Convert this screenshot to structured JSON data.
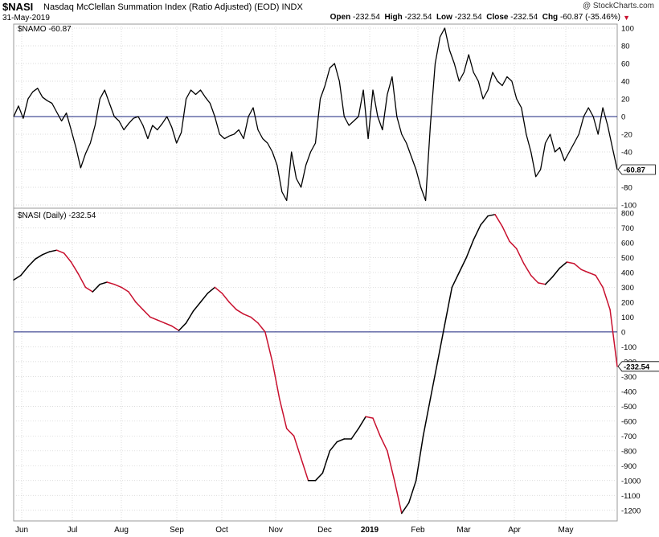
{
  "header": {
    "symbol": "$NASI",
    "name": "Nasdaq McClellan Summation Index (Ratio Adjusted) (EOD)",
    "exchange": "INDX",
    "date": "31-May-2019",
    "credit": "@ StockCharts.com",
    "ohlc": {
      "open_label": "Open",
      "open": "-232.54",
      "high_label": "High",
      "high": "-232.54",
      "low_label": "Low",
      "low": "-232.54",
      "close_label": "Close",
      "close": "-232.54",
      "chg_label": "Chg",
      "chg": "-60.87 (-35.46%)"
    }
  },
  "colors": {
    "line": "#000000",
    "decline": "#c8102e",
    "zero_line": "#1a237e",
    "grid": "#d0d0d0"
  },
  "chart_data": [
    {
      "type": "line",
      "panel_label": "$NAMO -60.87",
      "last_value_label": "-60.87",
      "ylim": [
        -100,
        100
      ],
      "yticks": [
        100,
        80,
        60,
        40,
        20,
        0,
        -20,
        -40,
        -60,
        -80,
        -100
      ],
      "zero_line": 0,
      "x": [
        0,
        2,
        4,
        6,
        8,
        10,
        12,
        14,
        16,
        18,
        20,
        22,
        24,
        26,
        28,
        30,
        32,
        34,
        36,
        38,
        40,
        42,
        44,
        46,
        48,
        50,
        52,
        54,
        56,
        58,
        60,
        62,
        64,
        66,
        68,
        70,
        72,
        74,
        76,
        78,
        80,
        82,
        84,
        86,
        88,
        90,
        92,
        94,
        96,
        98,
        100,
        102,
        104,
        106,
        108,
        110,
        112,
        114,
        116,
        118,
        120,
        122,
        124,
        126,
        128,
        130,
        132,
        134,
        136,
        138,
        140,
        142,
        144,
        146,
        148,
        150,
        152,
        154,
        156,
        158,
        160,
        162,
        164,
        166,
        168,
        170,
        172,
        174,
        176,
        178,
        180,
        182,
        184,
        186,
        188,
        190,
        192,
        194,
        196,
        198,
        200,
        202,
        204,
        206,
        208,
        210,
        212,
        214,
        216,
        218,
        220,
        222,
        224,
        226,
        228,
        230,
        232,
        234,
        236,
        238,
        240,
        242,
        244,
        246,
        248,
        250,
        252
      ],
      "values": [
        0,
        12,
        -2,
        20,
        28,
        32,
        22,
        18,
        15,
        5,
        -5,
        4,
        -15,
        -35,
        -58,
        -42,
        -30,
        -10,
        20,
        30,
        15,
        0,
        -5,
        -15,
        -8,
        -2,
        0,
        -10,
        -25,
        -10,
        -15,
        -8,
        0,
        -12,
        -30,
        -18,
        20,
        30,
        25,
        30,
        22,
        15,
        0,
        -20,
        -25,
        -22,
        -20,
        -15,
        -25,
        0,
        10,
        -15,
        -25,
        -30,
        -40,
        -55,
        -85,
        -95,
        -40,
        -70,
        -80,
        -55,
        -40,
        -30,
        20,
        35,
        55,
        60,
        40,
        0,
        -10,
        -5,
        0,
        30,
        -25,
        30,
        0,
        -15,
        25,
        45,
        0,
        -20,
        -30,
        -45,
        -60,
        -80,
        -95,
        -10,
        60,
        90,
        100,
        75,
        60,
        40,
        50,
        70,
        50,
        40,
        20,
        30,
        50,
        40,
        35,
        45,
        40,
        20,
        10,
        -20,
        -40,
        -68,
        -60,
        -30,
        -20,
        -40,
        -35,
        -50,
        -40,
        -30,
        -20,
        0,
        10,
        0,
        -20,
        10,
        -10,
        -35,
        -60
      ],
      "xlim": [
        0,
        252
      ]
    },
    {
      "type": "line",
      "panel_label": "$NASI (Daily) -232.54",
      "last_value_label": "-232.54",
      "ylim": [
        -1250,
        800
      ],
      "yticks": [
        800,
        700,
        600,
        500,
        400,
        300,
        200,
        100,
        0,
        -100,
        -200,
        -300,
        -400,
        -500,
        -600,
        -700,
        -800,
        -900,
        -1000,
        -1100,
        -1200
      ],
      "zero_line": 0,
      "x": [
        0,
        3,
        6,
        9,
        12,
        15,
        18,
        21,
        24,
        27,
        30,
        33,
        36,
        39,
        42,
        45,
        48,
        51,
        54,
        57,
        60,
        63,
        66,
        69,
        72,
        75,
        78,
        81,
        84,
        87,
        90,
        93,
        96,
        99,
        102,
        105,
        108,
        111,
        114,
        117,
        120,
        123,
        126,
        129,
        132,
        135,
        138,
        141,
        144,
        147,
        150,
        153,
        156,
        159,
        162,
        165,
        168,
        171,
        174,
        177,
        180,
        183,
        186,
        189,
        192,
        195,
        198,
        201,
        204,
        207,
        210,
        213,
        216,
        219,
        222,
        225,
        228,
        231,
        234,
        237,
        240,
        243,
        246,
        249,
        252
      ],
      "values": [
        350,
        380,
        440,
        490,
        520,
        540,
        550,
        530,
        470,
        390,
        300,
        270,
        320,
        335,
        320,
        300,
        270,
        200,
        150,
        100,
        80,
        60,
        40,
        10,
        60,
        140,
        200,
        260,
        300,
        260,
        200,
        150,
        120,
        100,
        60,
        0,
        -200,
        -450,
        -650,
        -700,
        -850,
        -1000,
        -1000,
        -950,
        -800,
        -740,
        -720,
        -720,
        -650,
        -570,
        -580,
        -700,
        -800,
        -1000,
        -1220,
        -1150,
        -1000,
        -700,
        -450,
        -200,
        50,
        300,
        400,
        500,
        620,
        720,
        780,
        790,
        710,
        610,
        560,
        460,
        380,
        330,
        320,
        370,
        430,
        470,
        460,
        420,
        400,
        380,
        300,
        150,
        -232
      ],
      "xlim": [
        0,
        252
      ]
    }
  ],
  "x_axis": {
    "labels": [
      "Jun",
      "Jul",
      "Aug",
      "Sep",
      "Oct",
      "Nov",
      "Dec",
      "2019",
      "Feb",
      "Mar",
      "Apr",
      "May"
    ]
  }
}
